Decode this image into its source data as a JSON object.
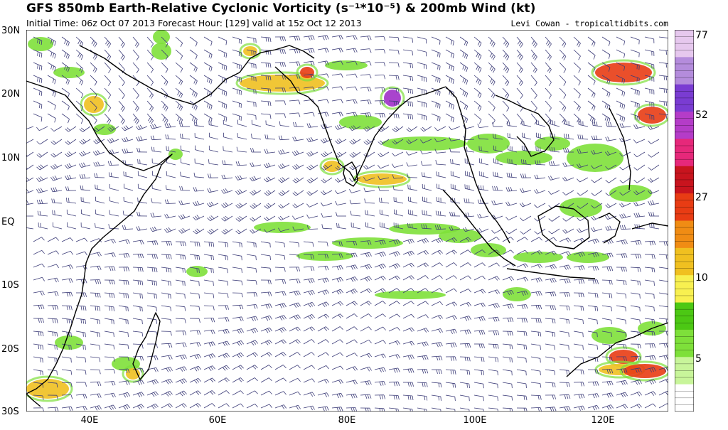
{
  "title": "GFS 850mb Earth-Relative Cyclonic Vorticity (s⁻¹*10⁻⁵) & 200mb Wind (kt)",
  "subtitle": "Initial Time: 06z Oct 07 2013 Forecast Hour: [129] valid at 15z Oct 12 2013",
  "credit": "Levi Cowan - tropicaltidbits.com",
  "lat_labels": [
    "30N",
    "20N",
    "10N",
    "EQ",
    "10S",
    "20S",
    "30S"
  ],
  "lon_labels": [
    "40E",
    "60E",
    "80E",
    "100E",
    "120E"
  ],
  "colorbar": {
    "labels": [
      "77",
      "52",
      "27",
      "10",
      "5"
    ],
    "colors": [
      "#ffffff",
      "#c8f59a",
      "#7ee03a",
      "#4cc814",
      "#f8f050",
      "#f0c020",
      "#f08c14",
      "#e83c14",
      "#c8141e",
      "#e6287a",
      "#b43cc8",
      "#7a3cd2",
      "#b48cdc",
      "#e6c8ee"
    ]
  },
  "map_colors": {
    "land": "#000000",
    "wind": "#3c3c78",
    "vort_low": "#7ee03a",
    "vort_mid": "#f0c020",
    "vort_high": "#e83c14",
    "vort_peak": "#a030c8"
  }
}
